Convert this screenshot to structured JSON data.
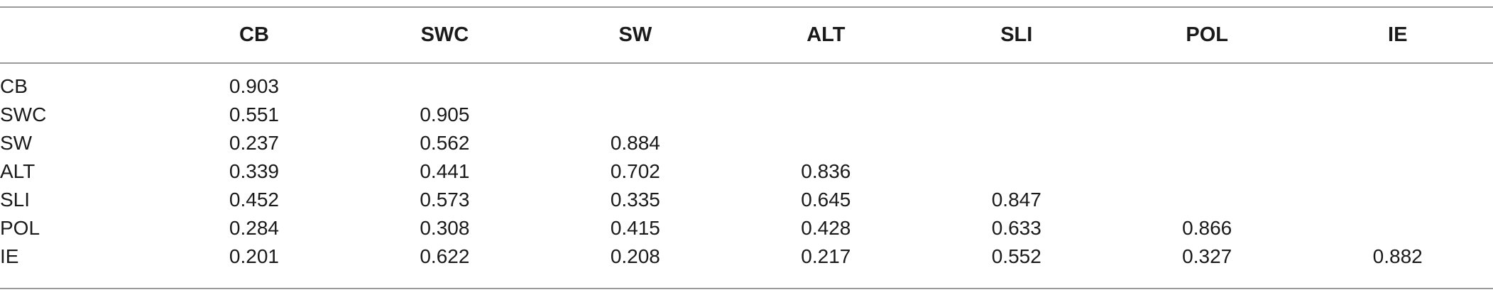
{
  "table": {
    "columns": [
      "",
      "CB",
      "SWC",
      "SW",
      "ALT",
      "SLI",
      "POL",
      "IE"
    ],
    "rows": [
      {
        "label": "CB",
        "values": [
          "0.903",
          "",
          "",
          "",
          "",
          "",
          ""
        ]
      },
      {
        "label": "SWC",
        "values": [
          "0.551",
          "0.905",
          "",
          "",
          "",
          "",
          ""
        ]
      },
      {
        "label": "SW",
        "values": [
          "0.237",
          "0.562",
          "0.884",
          "",
          "",
          "",
          ""
        ]
      },
      {
        "label": "ALT",
        "values": [
          "0.339",
          "0.441",
          "0.702",
          "0.836",
          "",
          "",
          ""
        ]
      },
      {
        "label": "SLI",
        "values": [
          "0.452",
          "0.573",
          "0.335",
          "0.645",
          "0.847",
          "",
          ""
        ]
      },
      {
        "label": "POL",
        "values": [
          "0.284",
          "0.308",
          "0.415",
          "0.428",
          "0.633",
          "0.866",
          ""
        ]
      },
      {
        "label": "IE",
        "values": [
          "0.201",
          "0.622",
          "0.208",
          "0.217",
          "0.552",
          "0.327",
          "0.882"
        ]
      }
    ]
  }
}
